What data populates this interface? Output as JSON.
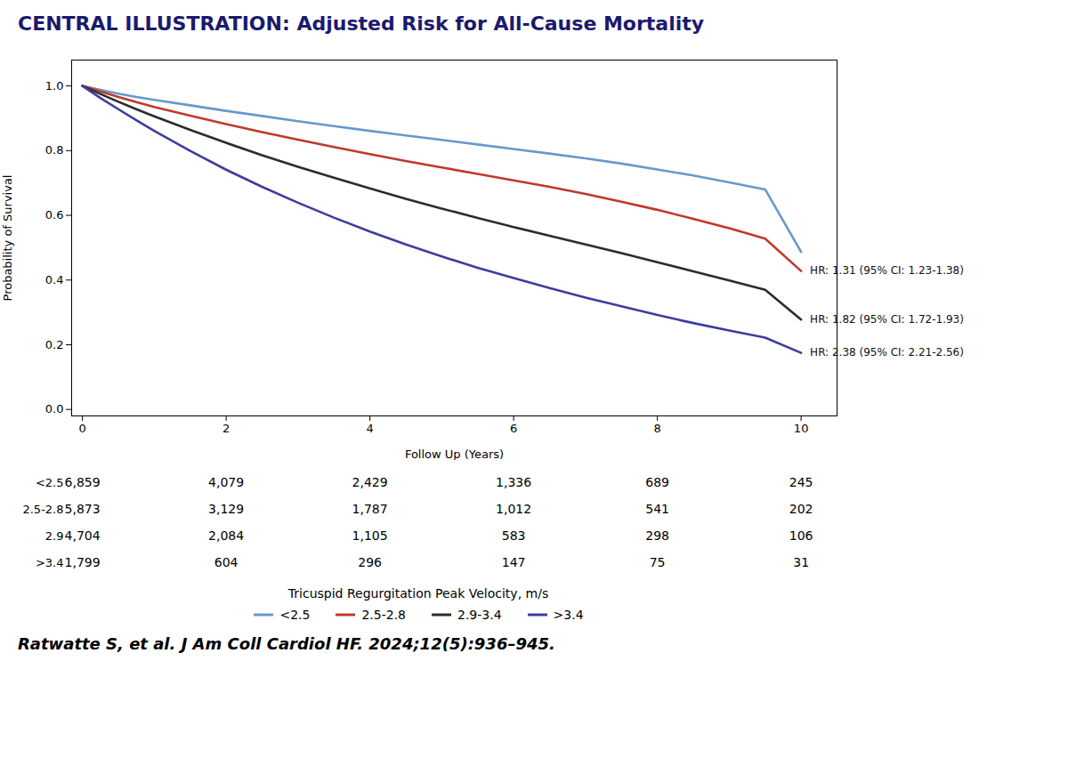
{
  "chart_data": {
    "type": "line",
    "title": "CENTRAL ILLUSTRATION: Adjusted Risk for All-Cause Mortality",
    "x_label": "Follow Up (Years)",
    "y_label": "Probability of Survival",
    "x": [
      0,
      0.25,
      0.5,
      0.75,
      1.0,
      1.5,
      2.0,
      2.5,
      3.0,
      3.5,
      4.0,
      4.5,
      5.0,
      5.5,
      6.0,
      6.5,
      7.0,
      7.5,
      8.0,
      8.5,
      9.0,
      9.5,
      10.0
    ],
    "series": [
      {
        "name": "<2.5",
        "color": "#6699cc",
        "values": [
          1.0,
          0.988,
          0.976,
          0.966,
          0.957,
          0.94,
          0.923,
          0.907,
          0.891,
          0.876,
          0.861,
          0.847,
          0.833,
          0.819,
          0.805,
          0.791,
          0.776,
          0.76,
          0.742,
          0.723,
          0.702,
          0.68,
          0.487
        ]
      },
      {
        "name": "2.5-2.8",
        "color": "#c0392b",
        "values": [
          1.0,
          0.983,
          0.966,
          0.95,
          0.935,
          0.908,
          0.882,
          0.857,
          0.834,
          0.811,
          0.789,
          0.768,
          0.748,
          0.728,
          0.708,
          0.688,
          0.666,
          0.642,
          0.617,
          0.589,
          0.56,
          0.528,
          0.428
        ]
      },
      {
        "name": "2.9-3.4",
        "color": "#2c2c2c",
        "values": [
          1.0,
          0.975,
          0.951,
          0.928,
          0.906,
          0.864,
          0.824,
          0.786,
          0.75,
          0.716,
          0.683,
          0.651,
          0.621,
          0.592,
          0.564,
          0.537,
          0.51,
          0.483,
          0.455,
          0.427,
          0.399,
          0.37,
          0.278
        ]
      },
      {
        "name": ">3.4",
        "color": "#3d3d9e",
        "values": [
          1.0,
          0.963,
          0.928,
          0.894,
          0.861,
          0.799,
          0.741,
          0.688,
          0.639,
          0.593,
          0.55,
          0.51,
          0.473,
          0.438,
          0.406,
          0.375,
          0.346,
          0.319,
          0.292,
          0.267,
          0.244,
          0.222,
          0.175
        ]
      }
    ],
    "xlim": [
      -0.15,
      10.5
    ],
    "ylim": [
      -0.02,
      1.08
    ],
    "xticks": [
      0,
      2,
      4,
      6,
      8,
      10
    ],
    "yticks": [
      {
        "value": 0.0,
        "label": "0.0"
      },
      0.2,
      0.4,
      0.6,
      0.8,
      {
        "value": 1.0,
        "label": "1.0"
      }
    ],
    "grid": false,
    "annotations": [
      {
        "text": "HR: 1.31 (95% CI: 1.23-1.38)",
        "x": 10.0,
        "y": 0.428
      },
      {
        "text": "HR: 1.82 (95% CI: 1.72-1.93)",
        "x": 10.0,
        "y": 0.278
      },
      {
        "text": "HR: 2.38 (95% CI: 2.21-2.56)",
        "x": 10.0,
        "y": 0.175
      }
    ],
    "at_risk": {
      "label": "Tricuspid Regurgitation Peak Velocity, m/s",
      "x": [
        0,
        2,
        4,
        6,
        8,
        10
      ],
      "rows": [
        {
          "label": "<2.5",
          "values": [
            6859,
            4079,
            2429,
            1336,
            689,
            245
          ],
          "value_labels": [
            "6,859",
            "4,079",
            "2,429",
            "1,336",
            "689",
            "245"
          ]
        },
        {
          "label": "2.5-2.8",
          "values": [
            5873,
            3129,
            1787,
            1012,
            541,
            202
          ],
          "value_labels": [
            "5,873",
            "3,129",
            "1,787",
            "1,012",
            "541",
            "202"
          ]
        },
        {
          "label": "2.9",
          "values": [
            4704,
            2084,
            1105,
            583,
            298,
            106
          ],
          "value_labels": [
            "4,704",
            "2,084",
            "1,105",
            "583",
            "298",
            "106"
          ]
        },
        {
          "label": ">3.4",
          "values": [
            1799,
            604,
            296,
            147,
            75,
            31
          ],
          "value_labels": [
            "1,799",
            "604",
            "296",
            "147",
            "75",
            "31"
          ]
        }
      ]
    },
    "caption": "Ratwatte S, et al. J Am Coll Cardiol HF. 2024;12(5):936–945."
  }
}
